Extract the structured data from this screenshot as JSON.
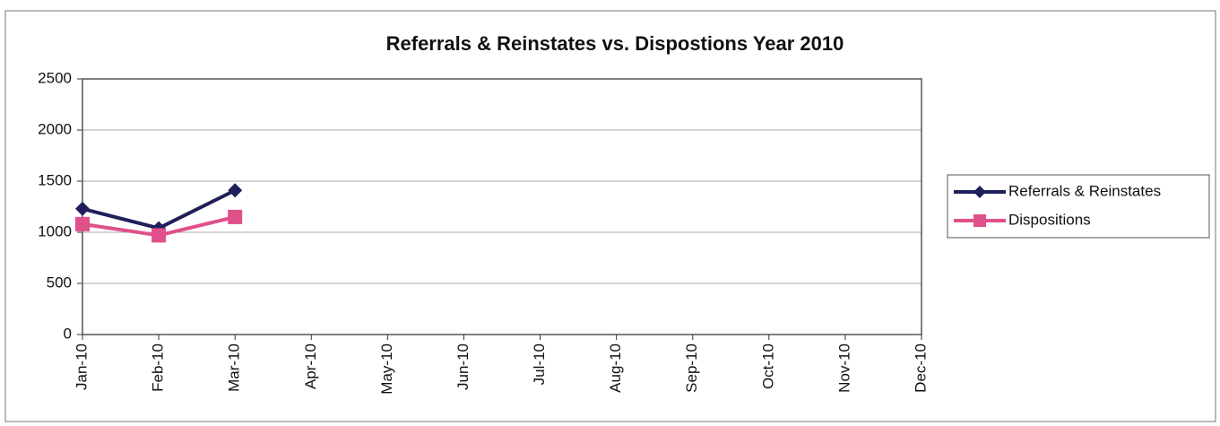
{
  "chart_data": {
    "type": "line",
    "title": "Referrals & Reinstates vs. Dispostions Year 2010",
    "categories": [
      "Jan-10",
      "Feb-10",
      "Mar-10",
      "Apr-10",
      "May-10",
      "Jun-10",
      "Jul-10",
      "Aug-10",
      "Sep-10",
      "Oct-10",
      "Nov-10",
      "Dec-10"
    ],
    "series": [
      {
        "name": "Referrals & Reinstates",
        "color": "#1f1f5c",
        "marker": "diamond",
        "values": [
          1230,
          1040,
          1410,
          null,
          null,
          null,
          null,
          null,
          null,
          null,
          null,
          null
        ]
      },
      {
        "name": "Dispositions",
        "color": "#e0508a",
        "marker": "square",
        "values": [
          1080,
          970,
          1150,
          null,
          null,
          null,
          null,
          null,
          null,
          null,
          null,
          null
        ]
      }
    ],
    "ylim": [
      0,
      2500
    ],
    "yticks": [
      0,
      500,
      1000,
      1500,
      2000,
      2500
    ],
    "grid": true,
    "legend": "right"
  }
}
